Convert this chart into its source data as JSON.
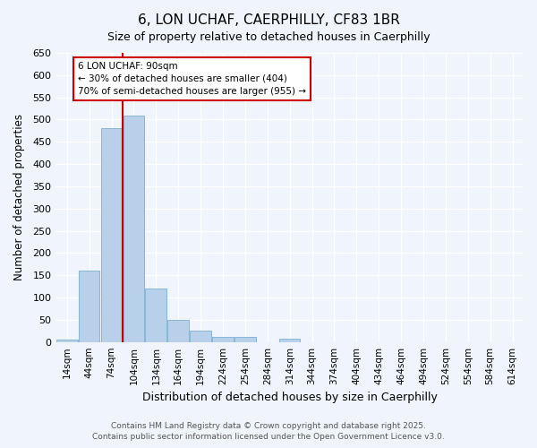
{
  "title": "6, LON UCHAF, CAERPHILLY, CF83 1BR",
  "subtitle": "Size of property relative to detached houses in Caerphilly",
  "xlabel": "Distribution of detached houses by size in Caerphilly",
  "ylabel": "Number of detached properties",
  "categories": [
    "14sqm",
    "44sqm",
    "74sqm",
    "104sqm",
    "134sqm",
    "164sqm",
    "194sqm",
    "224sqm",
    "254sqm",
    "284sqm",
    "314sqm",
    "344sqm",
    "374sqm",
    "404sqm",
    "434sqm",
    "464sqm",
    "494sqm",
    "524sqm",
    "554sqm",
    "584sqm",
    "614sqm"
  ],
  "values": [
    5,
    160,
    480,
    510,
    120,
    50,
    25,
    12,
    12,
    0,
    7,
    0,
    0,
    0,
    0,
    0,
    0,
    0,
    0,
    0,
    0
  ],
  "bar_color": "#b8d0ea",
  "bar_edge_color": "#7aafd4",
  "vline_x_index": 2,
  "vline_color": "#cc0000",
  "annotation_title": "6 LON UCHAF: 90sqm",
  "annotation_line1": "← 30% of detached houses are smaller (404)",
  "annotation_line2": "70% of semi-detached houses are larger (955) →",
  "annotation_box_color": "#cc0000",
  "ylim": [
    0,
    650
  ],
  "yticks": [
    0,
    50,
    100,
    150,
    200,
    250,
    300,
    350,
    400,
    450,
    500,
    550,
    600,
    650
  ],
  "footer_line1": "Contains HM Land Registry data © Crown copyright and database right 2025.",
  "footer_line2": "Contains public sector information licensed under the Open Government Licence v3.0.",
  "background_color": "#f0f4fc",
  "plot_bg_color": "#f0f4fc",
  "grid_color": "#ffffff",
  "title_fontsize": 11,
  "subtitle_fontsize": 9
}
